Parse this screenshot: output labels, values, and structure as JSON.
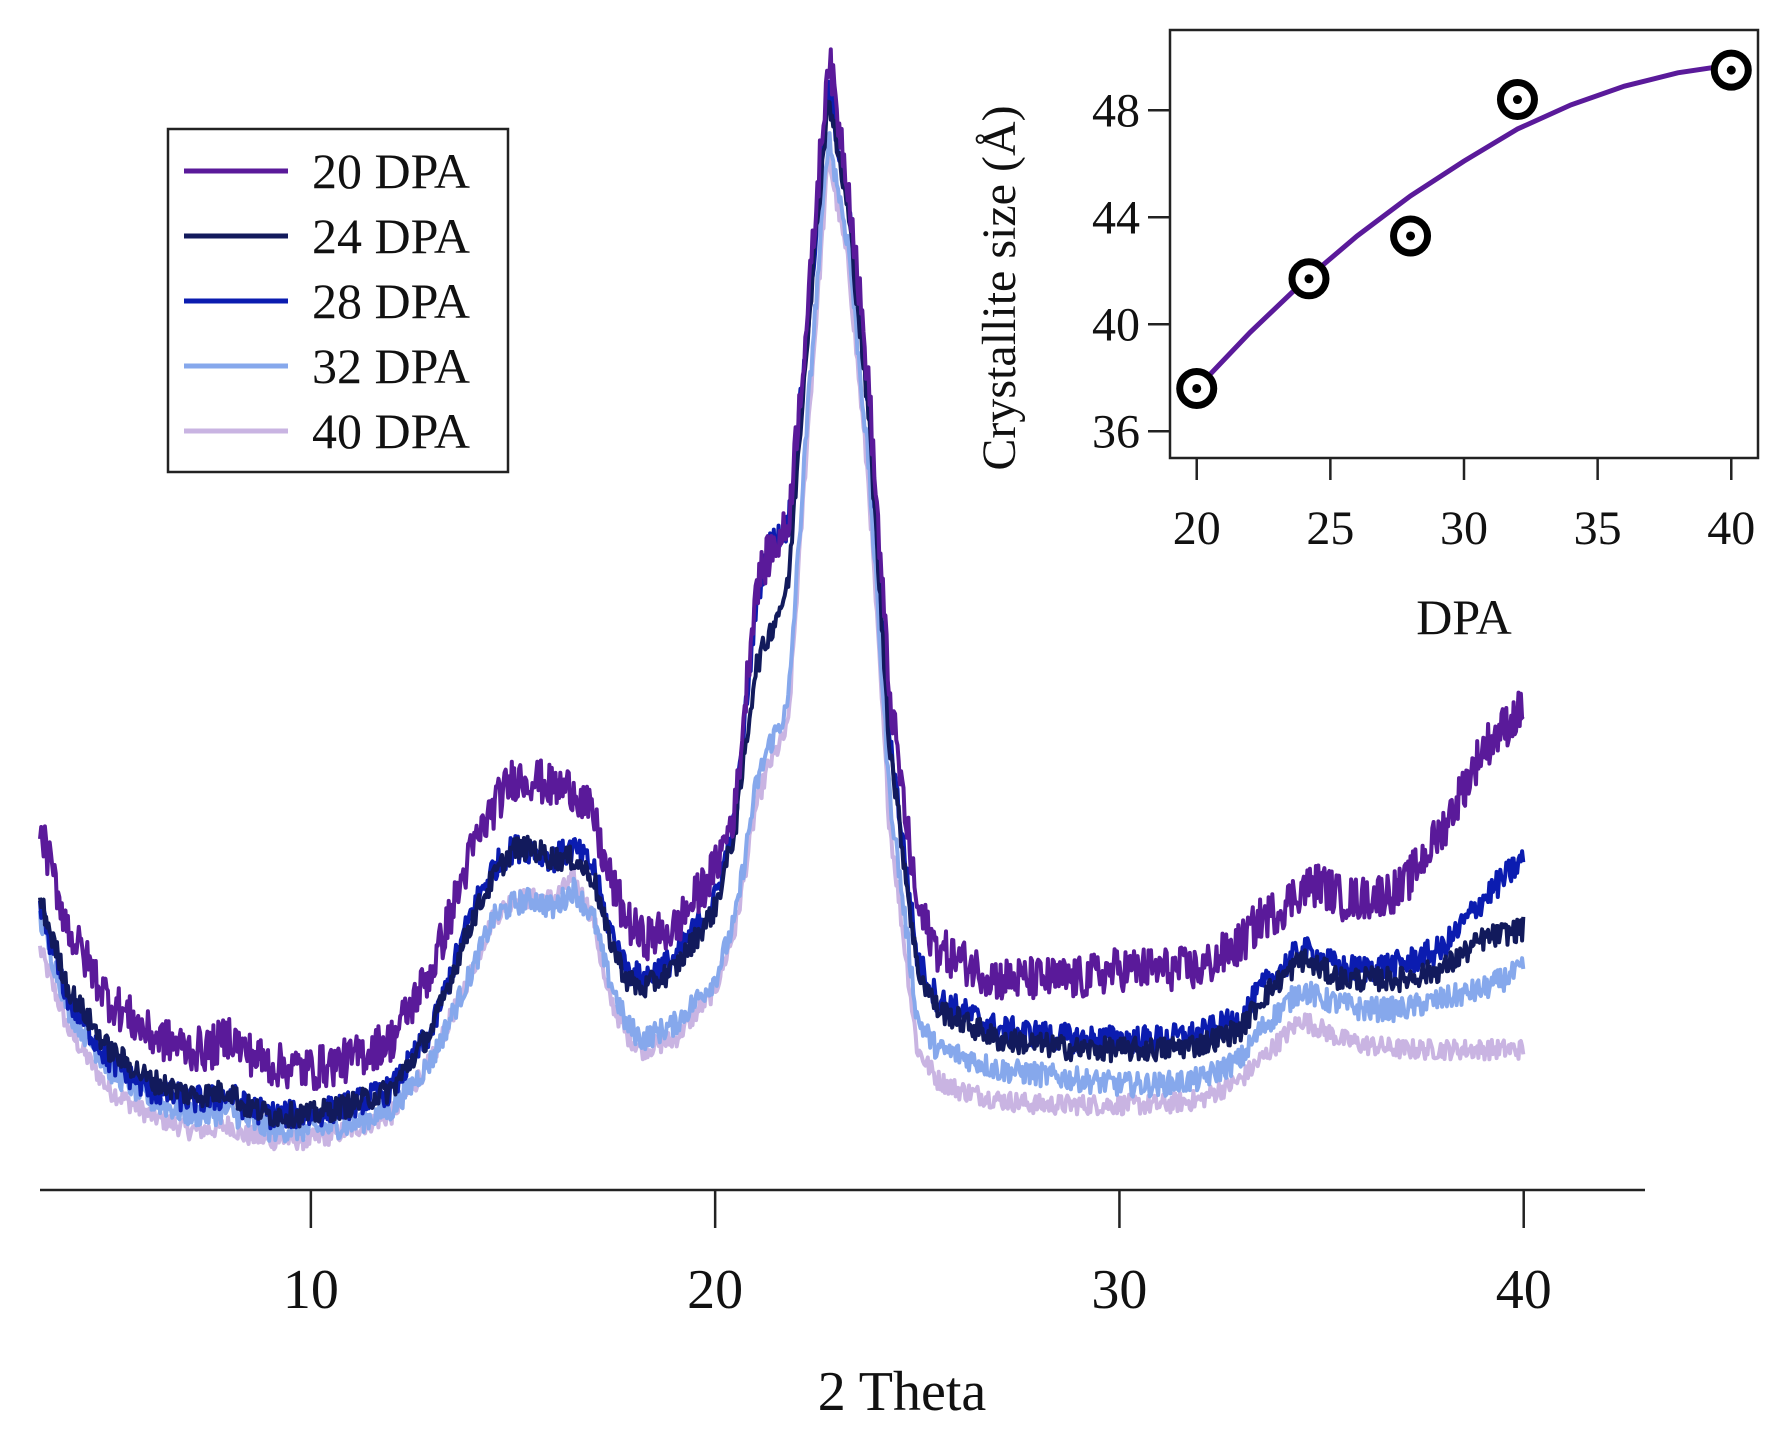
{
  "chart_data": [
    {
      "type": "line",
      "title": "",
      "xlabel": "2 Theta",
      "ylabel": "",
      "xlim": [
        3.3,
        43
      ],
      "ylim": [
        0,
        1.16
      ],
      "xticks": [
        10,
        20,
        30,
        40
      ],
      "xtick_labels": [
        "10",
        "20",
        "30",
        "40"
      ],
      "grid": false,
      "legend_position": "top-left",
      "y_axis_visible": false,
      "x": [
        3.3,
        4,
        5,
        6,
        7,
        7.5,
        8,
        8.3,
        9,
        10,
        11,
        12,
        13,
        14,
        14.5,
        15,
        15.5,
        16,
        16.5,
        17,
        17.3,
        17.8,
        18.2,
        19,
        20,
        20.5,
        21,
        21.3,
        21.8,
        22.3,
        22.8,
        23.3,
        23.8,
        24.3,
        25,
        25.5,
        26,
        27,
        28,
        29,
        30,
        31,
        32,
        33,
        33.5,
        34,
        34.5,
        35,
        35.5,
        36,
        37,
        38,
        39,
        40
      ],
      "series": [
        {
          "name": "20 DPA",
          "color": "#5a1a9a",
          "noise": 0.022,
          "values": [
            0.36,
            0.26,
            0.19,
            0.155,
            0.14,
            0.14,
            0.155,
            0.14,
            0.125,
            0.12,
            0.13,
            0.15,
            0.22,
            0.34,
            0.38,
            0.41,
            0.41,
            0.4,
            0.4,
            0.37,
            0.32,
            0.27,
            0.25,
            0.26,
            0.32,
            0.38,
            0.6,
            0.63,
            0.66,
            0.88,
            1.13,
            1.0,
            0.8,
            0.5,
            0.28,
            0.24,
            0.23,
            0.21,
            0.21,
            0.21,
            0.22,
            0.22,
            0.22,
            0.245,
            0.27,
            0.28,
            0.3,
            0.305,
            0.29,
            0.29,
            0.3,
            0.36,
            0.44,
            0.48
          ]
        },
        {
          "name": "24 DPA",
          "color": "#121a5c",
          "noise": 0.012,
          "values": [
            0.29,
            0.2,
            0.14,
            0.11,
            0.095,
            0.095,
            0.1,
            0.085,
            0.075,
            0.075,
            0.085,
            0.1,
            0.16,
            0.27,
            0.31,
            0.34,
            0.34,
            0.33,
            0.33,
            0.31,
            0.26,
            0.21,
            0.2,
            0.22,
            0.28,
            0.36,
            0.52,
            0.55,
            0.6,
            0.86,
            1.09,
            0.97,
            0.77,
            0.45,
            0.22,
            0.18,
            0.17,
            0.15,
            0.145,
            0.14,
            0.14,
            0.14,
            0.145,
            0.16,
            0.19,
            0.21,
            0.23,
            0.22,
            0.21,
            0.21,
            0.21,
            0.22,
            0.25,
            0.26
          ]
        },
        {
          "name": "28 DPA",
          "color": "#0b1cb0",
          "noise": 0.014,
          "values": [
            0.28,
            0.19,
            0.13,
            0.1,
            0.09,
            0.09,
            0.095,
            0.085,
            0.075,
            0.075,
            0.085,
            0.1,
            0.16,
            0.28,
            0.32,
            0.34,
            0.34,
            0.33,
            0.34,
            0.32,
            0.27,
            0.22,
            0.21,
            0.23,
            0.29,
            0.37,
            0.58,
            0.64,
            0.66,
            0.86,
            1.1,
            0.98,
            0.78,
            0.46,
            0.23,
            0.19,
            0.18,
            0.16,
            0.155,
            0.15,
            0.15,
            0.15,
            0.155,
            0.17,
            0.2,
            0.22,
            0.24,
            0.23,
            0.22,
            0.22,
            0.225,
            0.24,
            0.29,
            0.33
          ]
        },
        {
          "name": "32 DPA",
          "color": "#86a8ec",
          "noise": 0.012,
          "values": [
            0.27,
            0.18,
            0.12,
            0.09,
            0.075,
            0.075,
            0.08,
            0.07,
            0.06,
            0.06,
            0.065,
            0.08,
            0.13,
            0.22,
            0.27,
            0.285,
            0.29,
            0.28,
            0.3,
            0.27,
            0.22,
            0.165,
            0.15,
            0.165,
            0.21,
            0.27,
            0.4,
            0.44,
            0.48,
            0.78,
            1.05,
            0.94,
            0.72,
            0.4,
            0.17,
            0.14,
            0.135,
            0.12,
            0.115,
            0.11,
            0.105,
            0.105,
            0.11,
            0.13,
            0.16,
            0.18,
            0.2,
            0.19,
            0.185,
            0.18,
            0.18,
            0.19,
            0.2,
            0.22
          ]
        },
        {
          "name": "40 DPA",
          "color": "#c9b4e2",
          "noise": 0.01,
          "values": [
            0.24,
            0.16,
            0.1,
            0.075,
            0.06,
            0.06,
            0.065,
            0.055,
            0.05,
            0.05,
            0.06,
            0.075,
            0.13,
            0.22,
            0.27,
            0.29,
            0.29,
            0.29,
            0.31,
            0.27,
            0.2,
            0.155,
            0.14,
            0.15,
            0.2,
            0.26,
            0.38,
            0.42,
            0.46,
            0.76,
            1.03,
            0.92,
            0.7,
            0.37,
            0.14,
            0.11,
            0.1,
            0.09,
            0.085,
            0.085,
            0.085,
            0.085,
            0.09,
            0.11,
            0.13,
            0.15,
            0.17,
            0.16,
            0.15,
            0.145,
            0.14,
            0.14,
            0.14,
            0.14
          ]
        }
      ]
    },
    {
      "type": "scatter",
      "title": "",
      "xlabel": "DPA",
      "ylabel": "Crystallite size (Å)",
      "xlim": [
        19,
        41
      ],
      "ylim": [
        35,
        51
      ],
      "xticks": [
        20,
        25,
        30,
        35,
        40
      ],
      "xtick_labels": [
        "20",
        "25",
        "30",
        "35",
        "40"
      ],
      "yticks": [
        36,
        40,
        44,
        48
      ],
      "ytick_labels": [
        "36",
        "40",
        "44",
        "48"
      ],
      "grid": false,
      "legend_position": "none",
      "series": [
        {
          "name": "Crystallite size",
          "marker": "circle-dot",
          "color": "#000000",
          "x": [
            20,
            24.2,
            28,
            32,
            40
          ],
          "y": [
            37.6,
            41.7,
            43.3,
            48.4,
            49.5
          ]
        },
        {
          "name": "Fit",
          "type": "line",
          "color": "#5a1a9a",
          "x": [
            20,
            22,
            24,
            26,
            28,
            30,
            32,
            34,
            36,
            38,
            40
          ],
          "y": [
            37.6,
            39.7,
            41.6,
            43.3,
            44.8,
            46.1,
            47.3,
            48.2,
            48.9,
            49.4,
            49.7
          ]
        }
      ]
    }
  ]
}
